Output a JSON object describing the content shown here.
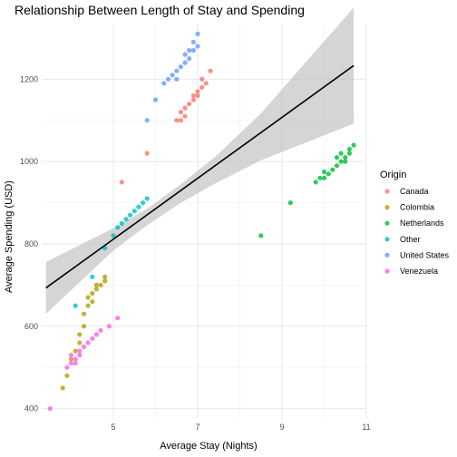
{
  "chart_data": {
    "type": "scatter",
    "title": "Relationship Between Length of Stay and Spending",
    "xlabel": "Average Stay (Nights)",
    "ylabel": "Average Spending (USD)",
    "xlim": [
      3.3,
      11
    ],
    "ylim": [
      375,
      1335
    ],
    "x_ticks": [
      5,
      7,
      9,
      11
    ],
    "y_ticks": [
      400,
      600,
      800,
      1000,
      1200
    ],
    "grid": true,
    "legend": {
      "title": "Origin",
      "position": "right"
    },
    "series": [
      {
        "name": "Canada",
        "color": "#f8766d",
        "points": [
          [
            5.2,
            950
          ],
          [
            5.8,
            1020
          ],
          [
            6.5,
            1100
          ],
          [
            6.6,
            1100
          ],
          [
            6.6,
            1120
          ],
          [
            6.7,
            1110
          ],
          [
            6.7,
            1130
          ],
          [
            6.8,
            1140
          ],
          [
            6.9,
            1150
          ],
          [
            6.9,
            1160
          ],
          [
            7.0,
            1160
          ],
          [
            7.0,
            1170
          ],
          [
            7.1,
            1180
          ],
          [
            7.2,
            1190
          ],
          [
            7.1,
            1200
          ],
          [
            7.3,
            1220
          ]
        ]
      },
      {
        "name": "Colombia",
        "color": "#b79f00",
        "points": [
          [
            3.8,
            450
          ],
          [
            3.9,
            480
          ],
          [
            4.0,
            520
          ],
          [
            4.1,
            540
          ],
          [
            4.2,
            560
          ],
          [
            4.2,
            580
          ],
          [
            4.3,
            600
          ],
          [
            4.3,
            630
          ],
          [
            4.4,
            650
          ],
          [
            4.4,
            670
          ],
          [
            4.5,
            660
          ],
          [
            4.5,
            680
          ],
          [
            4.6,
            690
          ],
          [
            4.6,
            700
          ],
          [
            4.7,
            700
          ],
          [
            4.8,
            710
          ],
          [
            4.8,
            720
          ]
        ]
      },
      {
        "name": "Netherlands",
        "color": "#00ba38",
        "points": [
          [
            8.5,
            820
          ],
          [
            9.2,
            900
          ],
          [
            9.8,
            950
          ],
          [
            9.9,
            960
          ],
          [
            10.0,
            960
          ],
          [
            10.1,
            970
          ],
          [
            10.2,
            980
          ],
          [
            10.3,
            990
          ],
          [
            10.4,
            1000
          ],
          [
            10.5,
            1000
          ],
          [
            10.5,
            1010
          ],
          [
            10.6,
            1020
          ],
          [
            10.6,
            1030
          ],
          [
            10.7,
            1040
          ],
          [
            10.4,
            1020
          ],
          [
            10.3,
            1010
          ],
          [
            10.0,
            975
          ]
        ]
      },
      {
        "name": "Other",
        "color": "#00bfc4",
        "points": [
          [
            4.1,
            650
          ],
          [
            4.5,
            720
          ],
          [
            4.8,
            790
          ],
          [
            5.0,
            820
          ],
          [
            5.1,
            840
          ],
          [
            5.2,
            850
          ],
          [
            5.3,
            860
          ],
          [
            5.4,
            870
          ],
          [
            5.5,
            880
          ],
          [
            5.6,
            890
          ],
          [
            5.7,
            900
          ],
          [
            5.8,
            910
          ]
        ]
      },
      {
        "name": "United States",
        "color": "#619cff",
        "points": [
          [
            5.8,
            1100
          ],
          [
            6.0,
            1150
          ],
          [
            6.2,
            1190
          ],
          [
            6.3,
            1200
          ],
          [
            6.4,
            1210
          ],
          [
            6.5,
            1220
          ],
          [
            6.6,
            1230
          ],
          [
            6.7,
            1240
          ],
          [
            6.8,
            1250
          ],
          [
            6.9,
            1270
          ],
          [
            7.0,
            1280
          ],
          [
            7.0,
            1310
          ],
          [
            6.8,
            1270
          ],
          [
            6.7,
            1260
          ],
          [
            6.5,
            1200
          ],
          [
            6.9,
            1290
          ]
        ]
      },
      {
        "name": "Venezuela",
        "color": "#f564e3",
        "points": [
          [
            3.5,
            400
          ],
          [
            3.9,
            500
          ],
          [
            4.0,
            510
          ],
          [
            4.0,
            530
          ],
          [
            4.1,
            520
          ],
          [
            4.2,
            540
          ],
          [
            4.3,
            550
          ],
          [
            4.4,
            560
          ],
          [
            4.5,
            570
          ],
          [
            4.6,
            580
          ],
          [
            4.7,
            590
          ],
          [
            4.9,
            600
          ],
          [
            5.1,
            620
          ],
          [
            4.1,
            510
          ],
          [
            4.2,
            530
          ]
        ]
      }
    ],
    "regression": {
      "type": "linear",
      "x": [
        3.4,
        10.7
      ],
      "y": [
        693,
        1233
      ],
      "confidence_band": [
        [
          3.4,
          630,
          756
        ],
        [
          5.0,
          784,
          838
        ],
        [
          5.8,
          845,
          885
        ],
        [
          6.6,
          900,
          945
        ],
        [
          7.4,
          946,
          1010
        ],
        [
          8.5,
          1003,
          1117
        ],
        [
          10.7,
          1092,
          1374
        ]
      ],
      "line_color": "#000000",
      "band_color": "#bfbfbf"
    }
  }
}
